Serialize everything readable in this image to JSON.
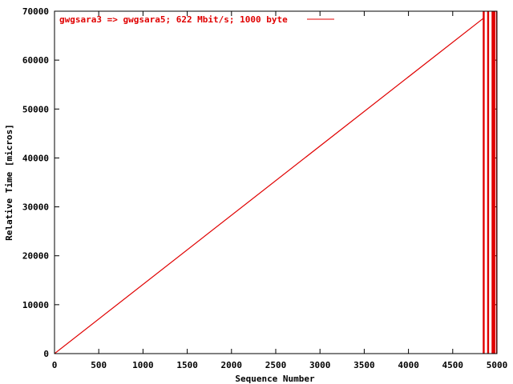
{
  "chart_data": {
    "type": "line",
    "xlabel": "Sequence Number",
    "ylabel": "Relative Time [micros]",
    "xlim": [
      0,
      5000
    ],
    "ylim": [
      0,
      70000
    ],
    "x_ticks": [
      0,
      500,
      1000,
      1500,
      2000,
      2500,
      3000,
      3500,
      4000,
      4500,
      5000
    ],
    "y_ticks": [
      0,
      10000,
      20000,
      30000,
      40000,
      50000,
      60000,
      70000
    ],
    "x_tick_labels": [
      "0",
      "500",
      "1000",
      "1500",
      "2000",
      "2500",
      "3000",
      "3500",
      "4000",
      "4500",
      "5000"
    ],
    "y_tick_labels": [
      "0",
      "10000",
      "20000",
      "30000",
      "40000",
      "50000",
      "60000",
      "70000"
    ],
    "grid": false,
    "legend_position": "top-left",
    "series": [
      {
        "name": "gwgsara3 => gwgsara5; 622 Mbit/s; 1000 byte",
        "color": "#e00000",
        "x": [
          0,
          4850
        ],
        "y": [
          0,
          68600
        ]
      }
    ],
    "spikes": {
      "color": "#e00000",
      "x": [
        4850,
        4900,
        4950,
        4970,
        5000
      ],
      "y_from": 0,
      "y_to": 70000
    }
  }
}
